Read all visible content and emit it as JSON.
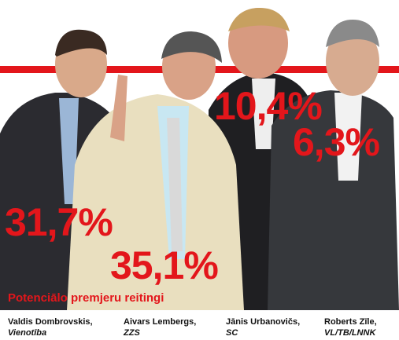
{
  "title": "Potenciālo premjeru reitingi",
  "candidates": [
    {
      "name": "Valdis Dombrovskis,",
      "party": "Vienotība",
      "rating": "31,7%"
    },
    {
      "name": "Aivars Lembergs,",
      "party": "ZZS",
      "rating": "35,1%"
    },
    {
      "name": "Jānis Urbanovičs,",
      "party": "SC",
      "rating": "10,4%"
    },
    {
      "name": "Roberts Zīle,",
      "party": "VL/TB/LNNK",
      "rating": "6,3%"
    }
  ]
}
